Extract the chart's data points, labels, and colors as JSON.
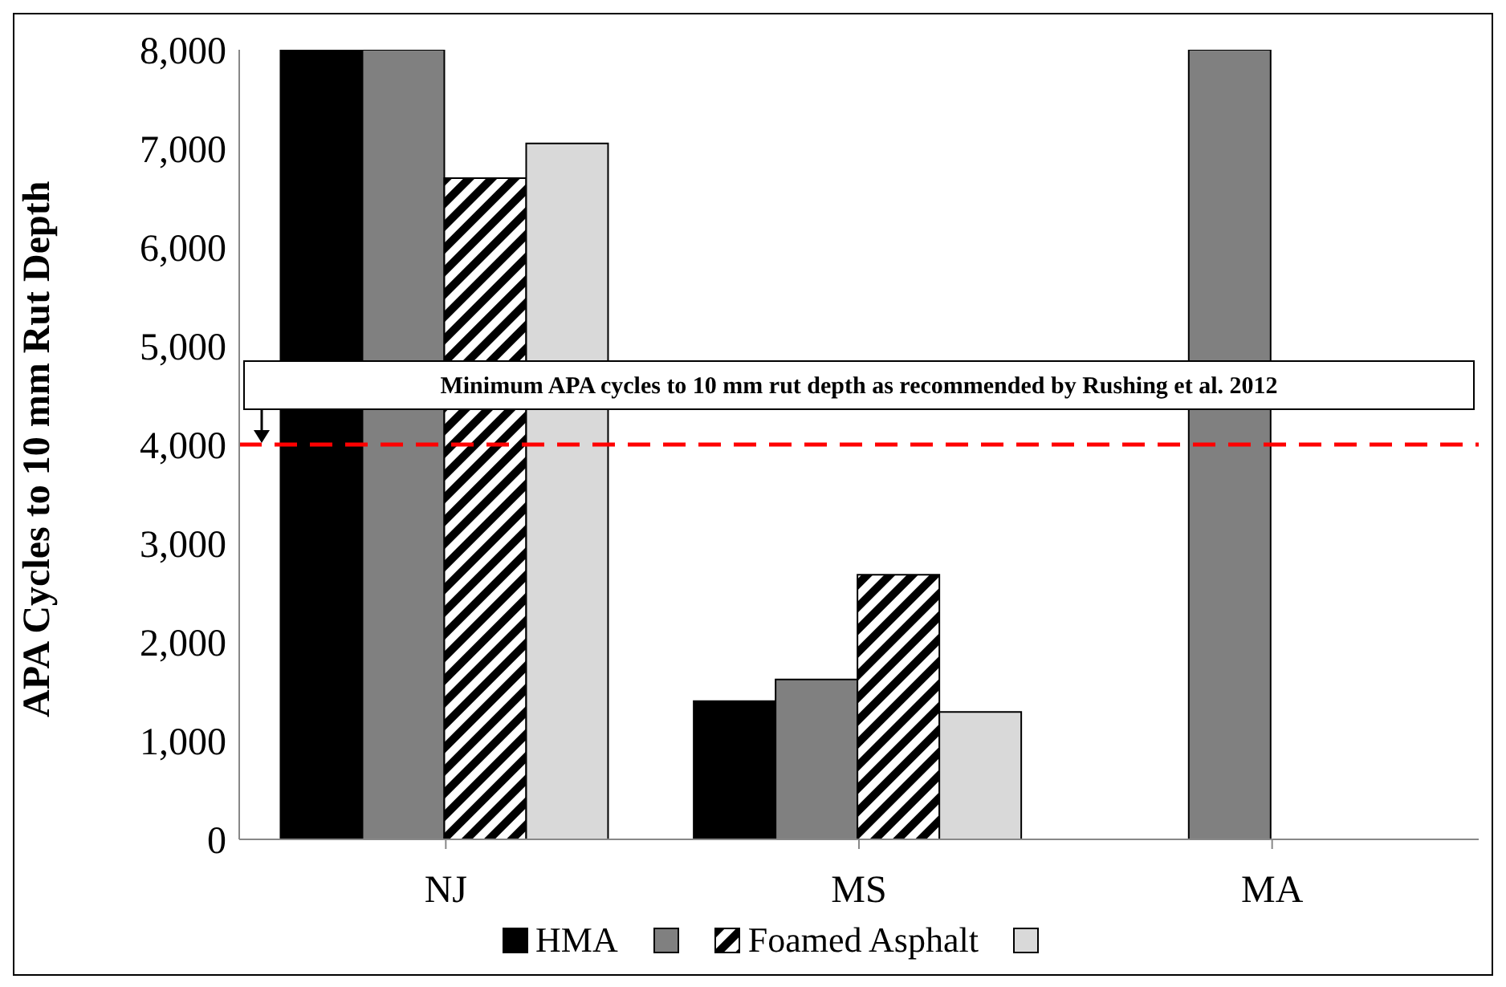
{
  "chart_data": {
    "type": "bar",
    "ylabel": "APA Cycles to 10 mm Rut Depth",
    "categories": [
      "NJ",
      "MS",
      "MA"
    ],
    "series": [
      {
        "name": "HMA",
        "color": "#000000",
        "values": [
          8000,
          1400,
          null
        ]
      },
      {
        "color": "#808080",
        "values": [
          8000,
          1620,
          8000
        ]
      },
      {
        "name": "Foamed Asphalt",
        "color": "#000000",
        "values": [
          6700,
          2680,
          null
        ]
      },
      {
        "color": "#d9d9d9",
        "values": [
          7050,
          1290,
          null
        ]
      }
    ],
    "ylim": [
      0,
      8000
    ],
    "yticks": [
      {
        "value": 0,
        "label": "0"
      },
      {
        "value": 1000,
        "label": "1,000"
      },
      {
        "value": 2000,
        "label": "2,000"
      },
      {
        "value": 3000,
        "label": "3,000"
      },
      {
        "value": 4000,
        "label": "4,000"
      },
      {
        "value": 5000,
        "label": "5,000"
      },
      {
        "value": 6000,
        "label": "6,000"
      },
      {
        "value": 7000,
        "label": "7,000"
      },
      {
        "value": 8000,
        "label": "8,000"
      }
    ],
    "ref_lines": [
      {
        "axis": "y",
        "value": 4000,
        "label": "Minimum APA cycles to 10 mm rut depth as recommended by Rushing et al. 2012",
        "color": "#ff0000",
        "line_style": "dashed"
      }
    ],
    "grid": false,
    "legend": "bottom"
  }
}
